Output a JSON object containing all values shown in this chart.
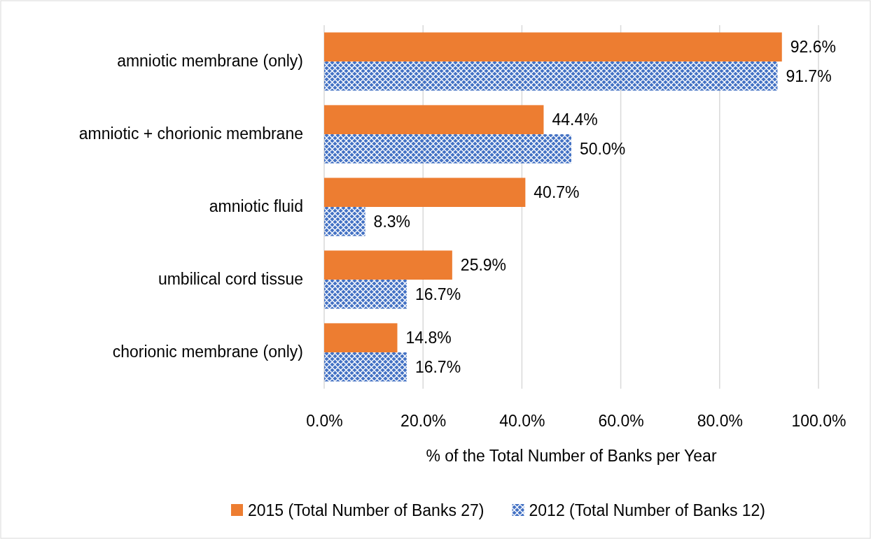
{
  "chart_data": {
    "type": "bar",
    "orientation": "horizontal",
    "xlabel": "% of the Total Number of Banks per Year",
    "categories": [
      "amniotic membrane (only)",
      "amniotic + chorionic membrane",
      "amniotic fluid",
      "umbilical cord tissue",
      "chorionic membrane (only)"
    ],
    "series": [
      {
        "name": "2015 (Total Number of Banks 27)",
        "color": "#ed7d31",
        "values": [
          92.6,
          44.4,
          40.7,
          25.9,
          14.8
        ],
        "value_labels": [
          "92.6%",
          "44.4%",
          "40.7%",
          "25.9%",
          "14.8%"
        ]
      },
      {
        "name": "2012 (Total Number of Banks 12)",
        "color": "#4472c4",
        "values": [
          91.7,
          50.0,
          8.3,
          16.7,
          16.7
        ],
        "value_labels": [
          "91.7%",
          "50.0%",
          "8.3%",
          "16.7%",
          "16.7%"
        ]
      }
    ],
    "xlim": [
      0,
      100
    ],
    "xticks": [
      {
        "value": 0,
        "label": "0.0%"
      },
      {
        "value": 20,
        "label": "20.0%"
      },
      {
        "value": 40,
        "label": "40.0%"
      },
      {
        "value": 60,
        "label": "60.0%"
      },
      {
        "value": 80,
        "label": "80.0%"
      },
      {
        "value": 100,
        "label": "100.0%"
      }
    ],
    "grid": "x",
    "legend": "bottom"
  }
}
